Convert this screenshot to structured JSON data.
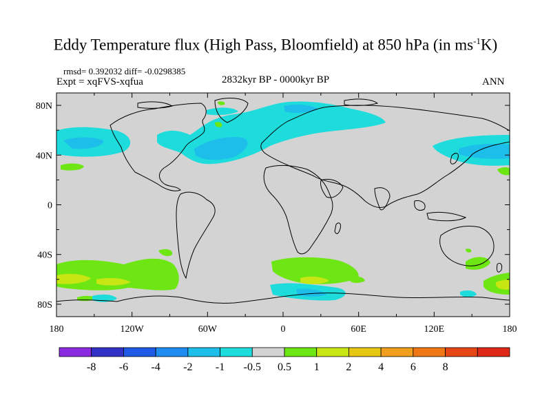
{
  "title": {
    "main": "Eddy Temperature flux (High Pass, Bloomfield) at 850 hPa (in ms",
    "exp": "-1",
    "tail": "K)"
  },
  "header": {
    "stats": "rmsd= 0.392032  diff= -0.0298385",
    "expt": "Expt = xqFVS-xqfua",
    "period": "2832kyr BP - 0000kyr BP",
    "season": "ANN"
  },
  "map": {
    "projection": "cylindrical equidistant",
    "lon_range": [
      -180,
      180
    ],
    "lat_range": [
      -90,
      90
    ],
    "x_ticks": [
      "180",
      "120W",
      "60W",
      "0",
      "60E",
      "120E",
      "180"
    ],
    "y_ticks": [
      "80N",
      "40N",
      "0",
      "40S",
      "80S"
    ],
    "background_color": "#d3d3d3",
    "coastline_color": "#000000"
  },
  "colorbar": {
    "colors": [
      "#8a2be2",
      "#3232c8",
      "#1e5ae6",
      "#1e8cf0",
      "#1ebeeb",
      "#1edcdc",
      "#d3d3d3",
      "#6ee614",
      "#c8e614",
      "#e6c814",
      "#f0a01e",
      "#f07814",
      "#e64614",
      "#dc2814"
    ],
    "labels": [
      "-8",
      "-6",
      "-4",
      "-2",
      "-1",
      "-0.5",
      "0.5",
      "1",
      "2",
      "4",
      "6",
      "8"
    ]
  }
}
